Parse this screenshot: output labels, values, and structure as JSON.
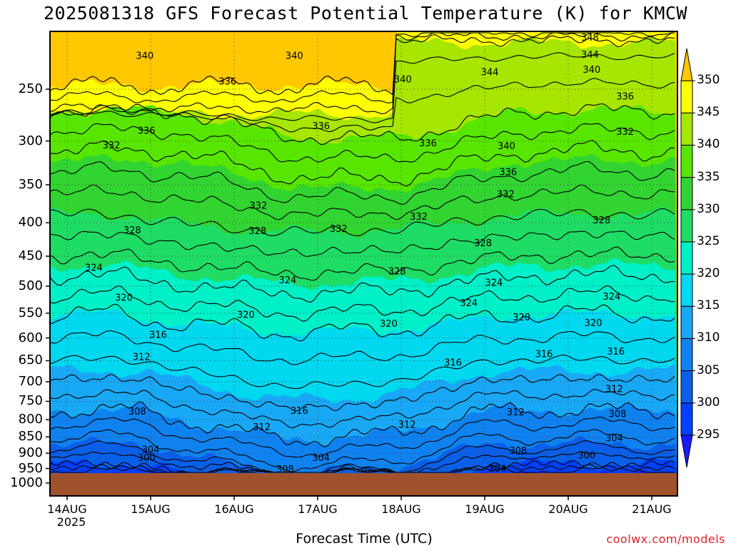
{
  "title": "2025081318 GFS Forecast Potential Temperature (K) for KMCW",
  "xlabel": "Forecast Time (UTC)",
  "source": "coolwx.com/models",
  "chart_data": {
    "type": "contour-cross-section",
    "title": "2025081318 GFS Forecast Potential Temperature (K) for KMCW",
    "xlabel": "Forecast Time (UTC)",
    "ylabel": "",
    "x_ticks": [
      "14AUG",
      "15AUG",
      "16AUG",
      "17AUG",
      "18AUG",
      "19AUG",
      "20AUG",
      "21AUG"
    ],
    "x_tick_sub": "2025",
    "y_ticks": [
      250,
      300,
      350,
      400,
      450,
      500,
      550,
      600,
      650,
      700,
      750,
      800,
      850,
      900,
      950,
      1000
    ],
    "y_scale": "log-pressure",
    "ylim": [
      1000,
      200
    ],
    "colorbar": {
      "levels": [
        295,
        300,
        305,
        310,
        315,
        320,
        325,
        330,
        335,
        340,
        345,
        350
      ],
      "colors": [
        "#1a1aff",
        "#0040ff",
        "#0a5fe8",
        "#0f82f0",
        "#19a8f5",
        "#00d8f0",
        "#00f0c8",
        "#1fdc64",
        "#31d431",
        "#58e600",
        "#a6e600",
        "#ffff00",
        "#ffc800"
      ]
    },
    "contour_labels": [
      "348",
      "344",
      "340",
      "336",
      "332",
      "328",
      "324",
      "320",
      "316",
      "312",
      "308",
      "304",
      "300"
    ],
    "label_points": [
      {
        "text": "340",
        "day": 0.93,
        "p": 222
      },
      {
        "text": "336",
        "day": 1.92,
        "p": 243
      },
      {
        "text": "340",
        "day": 2.72,
        "p": 222
      },
      {
        "text": "336",
        "day": 3.04,
        "p": 284
      },
      {
        "text": "340",
        "day": 4.02,
        "p": 241
      },
      {
        "text": "336",
        "day": 4.32,
        "p": 302
      },
      {
        "text": "344",
        "day": 5.06,
        "p": 235
      },
      {
        "text": "348",
        "day": 6.26,
        "p": 208
      },
      {
        "text": "344",
        "day": 6.26,
        "p": 221
      },
      {
        "text": "340",
        "day": 6.28,
        "p": 233
      },
      {
        "text": "336",
        "day": 6.68,
        "p": 256
      },
      {
        "text": "336",
        "day": 0.95,
        "p": 289
      },
      {
        "text": "332",
        "day": 0.53,
        "p": 304
      },
      {
        "text": "340",
        "day": 5.26,
        "p": 305
      },
      {
        "text": "336",
        "day": 5.28,
        "p": 334
      },
      {
        "text": "332",
        "day": 6.68,
        "p": 290
      },
      {
        "text": "332",
        "day": 5.25,
        "p": 361
      },
      {
        "text": "332",
        "day": 2.29,
        "p": 376
      },
      {
        "text": "332",
        "day": 3.25,
        "p": 408
      },
      {
        "text": "332",
        "day": 4.21,
        "p": 391
      },
      {
        "text": "328",
        "day": 0.78,
        "p": 410
      },
      {
        "text": "328",
        "day": 2.28,
        "p": 411
      },
      {
        "text": "328",
        "day": 6.4,
        "p": 396
      },
      {
        "text": "328",
        "day": 4.98,
        "p": 429
      },
      {
        "text": "328",
        "day": 3.95,
        "p": 474
      },
      {
        "text": "324",
        "day": 0.32,
        "p": 468
      },
      {
        "text": "324",
        "day": 2.64,
        "p": 489
      },
      {
        "text": "324",
        "day": 4.81,
        "p": 530
      },
      {
        "text": "324",
        "day": 5.11,
        "p": 493
      },
      {
        "text": "324",
        "day": 6.52,
        "p": 518
      },
      {
        "text": "320",
        "day": 0.68,
        "p": 520
      },
      {
        "text": "320",
        "day": 2.14,
        "p": 552
      },
      {
        "text": "320",
        "day": 3.85,
        "p": 570
      },
      {
        "text": "320",
        "day": 5.44,
        "p": 557
      },
      {
        "text": "320",
        "day": 6.3,
        "p": 568
      },
      {
        "text": "316",
        "day": 1.09,
        "p": 592
      },
      {
        "text": "316",
        "day": 4.62,
        "p": 653
      },
      {
        "text": "316",
        "day": 5.71,
        "p": 634
      },
      {
        "text": "316",
        "day": 6.57,
        "p": 628
      },
      {
        "text": "312",
        "day": 0.89,
        "p": 640
      },
      {
        "text": "312",
        "day": 6.55,
        "p": 717
      },
      {
        "text": "312",
        "day": 5.37,
        "p": 778
      },
      {
        "text": "312",
        "day": 4.07,
        "p": 813
      },
      {
        "text": "316",
        "day": 2.78,
        "p": 774
      },
      {
        "text": "312",
        "day": 2.33,
        "p": 820
      },
      {
        "text": "308",
        "day": 0.84,
        "p": 776
      },
      {
        "text": "308",
        "day": 6.59,
        "p": 783
      },
      {
        "text": "308",
        "day": 5.4,
        "p": 891
      },
      {
        "text": "308",
        "day": 2.61,
        "p": 951
      },
      {
        "text": "304",
        "day": 1.0,
        "p": 888
      },
      {
        "text": "304",
        "day": 3.04,
        "p": 913
      },
      {
        "text": "304",
        "day": 6.55,
        "p": 853
      },
      {
        "text": "304",
        "day": 5.15,
        "p": 949
      },
      {
        "text": "300",
        "day": 0.95,
        "p": 913
      },
      {
        "text": "300",
        "day": 6.22,
        "p": 906
      }
    ]
  }
}
